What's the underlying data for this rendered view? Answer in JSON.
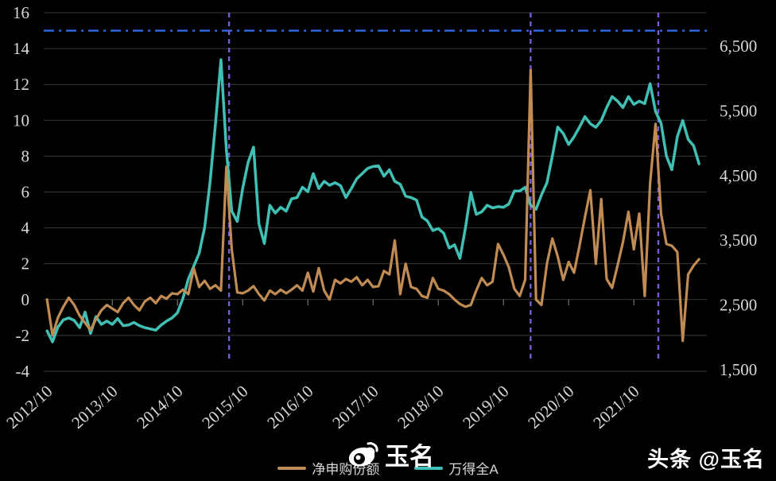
{
  "watermark": {
    "name": "玉名"
  },
  "footer": {
    "text": "头条 @玉名"
  },
  "colors": {
    "background": "#000000",
    "grid": "#3a3a3a",
    "axis_text": "#d8d8d8",
    "tick_mark": "#8a8a8a",
    "orange_series": "#c18b54",
    "teal_series": "#40c0b4",
    "horizontal_reference": "#2e6ae6",
    "vertical_reference": "#7a5ad2",
    "watermark_text": "#ffffff"
  },
  "chart_data": {
    "type": "line",
    "title": "",
    "categories": [
      "2012/10",
      "2012/11",
      "2012/12",
      "2013/01",
      "2013/02",
      "2013/03",
      "2013/04",
      "2013/05",
      "2013/06",
      "2013/07",
      "2013/08",
      "2013/09",
      "2013/10",
      "2013/11",
      "2013/12",
      "2014/01",
      "2014/02",
      "2014/03",
      "2014/04",
      "2014/05",
      "2014/06",
      "2014/07",
      "2014/08",
      "2014/09",
      "2014/10",
      "2014/11",
      "2014/12",
      "2015/01",
      "2015/02",
      "2015/03",
      "2015/04",
      "2015/05",
      "2015/06",
      "2015/07",
      "2015/08",
      "2015/09",
      "2015/10",
      "2015/11",
      "2015/12",
      "2016/01",
      "2016/02",
      "2016/03",
      "2016/04",
      "2016/05",
      "2016/06",
      "2016/07",
      "2016/08",
      "2016/09",
      "2016/10",
      "2016/11",
      "2016/12",
      "2017/01",
      "2017/02",
      "2017/03",
      "2017/04",
      "2017/05",
      "2017/06",
      "2017/07",
      "2017/08",
      "2017/09",
      "2017/10",
      "2017/11",
      "2017/12",
      "2018/01",
      "2018/02",
      "2018/03",
      "2018/04",
      "2018/05",
      "2018/06",
      "2018/07",
      "2018/08",
      "2018/09",
      "2018/10",
      "2018/11",
      "2018/12",
      "2019/01",
      "2019/02",
      "2019/03",
      "2019/04",
      "2019/05",
      "2019/06",
      "2019/07",
      "2019/08",
      "2019/09",
      "2019/10",
      "2019/11",
      "2019/12",
      "2020/01",
      "2020/02",
      "2020/03",
      "2020/04",
      "2020/05",
      "2020/06",
      "2020/07",
      "2020/08",
      "2020/09",
      "2020/10",
      "2020/11",
      "2020/12",
      "2021/01",
      "2021/02",
      "2021/03",
      "2021/04",
      "2021/05",
      "2021/06",
      "2021/07",
      "2021/08",
      "2021/09",
      "2021/10",
      "2021/11",
      "2021/12",
      "2022/01",
      "2022/02",
      "2022/03",
      "2022/04",
      "2022/05",
      "2022/06",
      "2022/07",
      "2022/08",
      "2022/09",
      "2022/10"
    ],
    "series": [
      {
        "name": "净申购份额",
        "axis": "left",
        "color": "#c18b54",
        "values": [
          0,
          -2,
          -1,
          -0.4,
          0.1,
          -0.3,
          -0.9,
          -1.3,
          -1.7,
          -1.1,
          -0.6,
          -0.3,
          -0.5,
          -0.7,
          -0.2,
          0.1,
          -0.3,
          -0.6,
          -0.1,
          0.1,
          -0.2,
          0.2,
          0.05,
          0.35,
          0.3,
          0.55,
          0.3,
          1.75,
          0.7,
          1.05,
          0.6,
          0.8,
          0.5,
          7.4,
          2.8,
          0.4,
          0.35,
          0.5,
          0.75,
          0.3,
          -0.05,
          0.5,
          0.3,
          0.55,
          0.35,
          0.55,
          0.8,
          0.5,
          1.5,
          0.45,
          1.75,
          0.5,
          0,
          1.1,
          0.9,
          1.15,
          1.0,
          1.25,
          0.8,
          1.1,
          0.7,
          0.75,
          1.6,
          1.4,
          3.3,
          0.3,
          2.0,
          0.7,
          0.6,
          0.2,
          0.1,
          1.2,
          0.6,
          0.5,
          0.3,
          0,
          -0.25,
          -0.4,
          -0.3,
          0.5,
          1.2,
          0.8,
          1.0,
          3.1,
          2.5,
          1.8,
          0.6,
          0.2,
          1.1,
          12.8,
          0,
          -0.3,
          2.0,
          3.4,
          2.4,
          1.1,
          2.1,
          1.5,
          3.0,
          4.6,
          6.1,
          2.0,
          5.6,
          1.15,
          0.65,
          1.9,
          3.2,
          4.9,
          2.8,
          4.8,
          0.2,
          6.5,
          9.8,
          4.8,
          3.1,
          3.0,
          2.65,
          -2.3,
          1.4,
          1.9,
          2.25
        ]
      },
      {
        "name": "万得全A",
        "axis": "right",
        "color": "#40c0b4",
        "values": [
          2100,
          1930,
          2160,
          2270,
          2300,
          2260,
          2150,
          2390,
          2060,
          2320,
          2200,
          2250,
          2200,
          2290,
          2180,
          2190,
          2230,
          2180,
          2150,
          2130,
          2110,
          2190,
          2250,
          2300,
          2380,
          2600,
          2900,
          3100,
          3300,
          3700,
          4400,
          5300,
          6290,
          4900,
          3950,
          3790,
          4300,
          4700,
          4940,
          3750,
          3450,
          4040,
          3920,
          4010,
          3950,
          4140,
          4160,
          4320,
          4250,
          4530,
          4300,
          4410,
          4350,
          4390,
          4345,
          4160,
          4300,
          4450,
          4530,
          4610,
          4640,
          4650,
          4490,
          4590,
          4410,
          4365,
          4180,
          4160,
          4120,
          3860,
          3800,
          3650,
          3680,
          3610,
          3380,
          3430,
          3220,
          3690,
          4240,
          3900,
          3940,
          4040,
          4000,
          4020,
          4010,
          4060,
          4260,
          4260,
          4320,
          4040,
          3980,
          4200,
          4390,
          4800,
          5250,
          5150,
          4980,
          5100,
          5250,
          5410,
          5300,
          5245,
          5350,
          5550,
          5720,
          5650,
          5550,
          5720,
          5600,
          5650,
          5610,
          5920,
          5490,
          5310,
          4800,
          4590,
          5100,
          5350,
          5060,
          4960,
          4680
        ]
      }
    ],
    "left_axis": {
      "min": -4,
      "max": 16,
      "step": 2,
      "tick_labels": [
        "16",
        "14",
        "12",
        "10",
        "8",
        "6",
        "4",
        "2",
        "0",
        "-2",
        "-4"
      ]
    },
    "right_axis": {
      "tick_values": [
        6500,
        5500,
        4500,
        3500,
        2500,
        1500
      ],
      "tick_labels": [
        "6,500",
        "5,500",
        "4,500",
        "3,500",
        "2,500",
        "1,500"
      ]
    },
    "x_axis": {
      "tick_indices": [
        0,
        12,
        24,
        36,
        48,
        60,
        72,
        84,
        96,
        108
      ],
      "tick_labels": [
        "2012/10",
        "2013/10",
        "2014/10",
        "2015/10",
        "2016/10",
        "2017/10",
        "2018/10",
        "2019/10",
        "2020/10",
        "2021/10"
      ]
    },
    "reference_lines": {
      "horizontal_left_value": 15,
      "horizontal_color": "#2e6ae6",
      "vertical_month_indices": [
        33.5,
        89,
        112.5
      ],
      "vertical_dates": [
        "2015/07",
        "2020/03",
        "2022/02"
      ],
      "vertical_color": "#7a5ad2"
    },
    "legend_position": "bottom-center",
    "grid": true
  }
}
